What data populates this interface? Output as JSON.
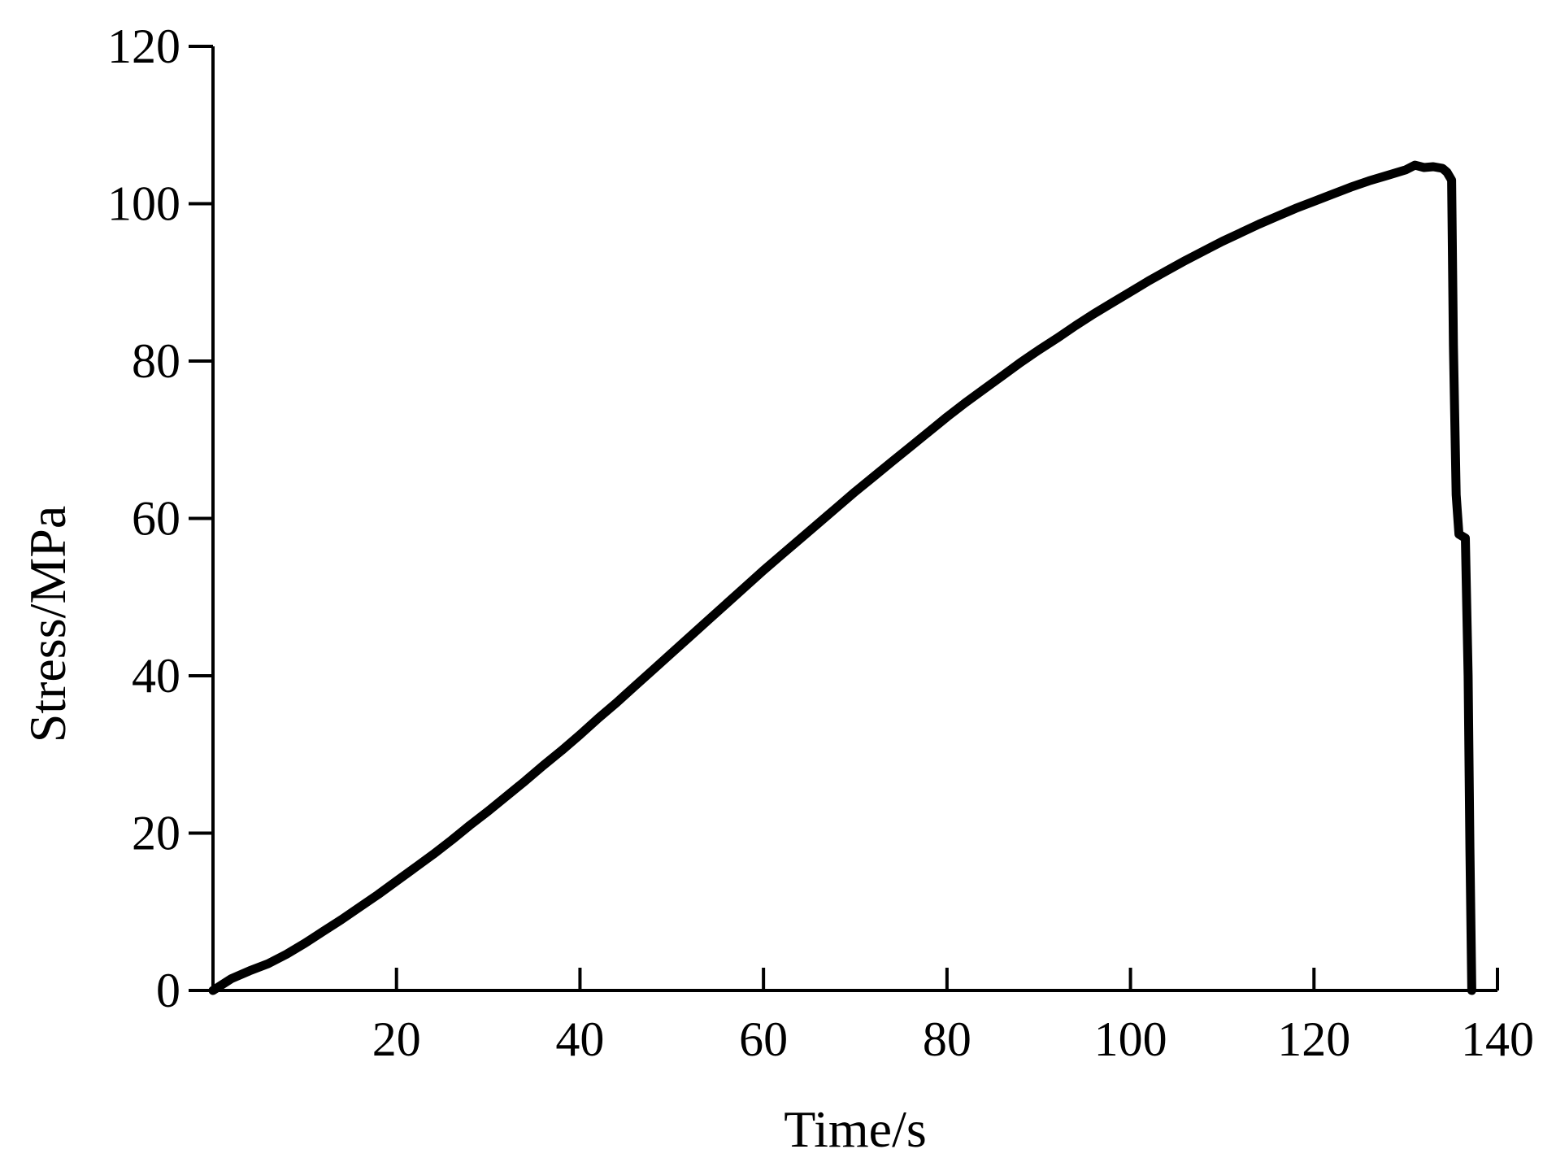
{
  "chart_data": {
    "type": "line",
    "title": "",
    "xlabel": "Time/s",
    "ylabel": "Stress/MPa",
    "xlim": [
      0,
      140
    ],
    "ylim": [
      0,
      120
    ],
    "xticks": [
      20,
      40,
      60,
      80,
      100,
      120,
      140
    ],
    "yticks": [
      0,
      20,
      40,
      60,
      80,
      100,
      120
    ],
    "grid": false,
    "legend": "none",
    "line_color": "#000000",
    "series": [
      {
        "x": [
          0,
          2,
          4,
          6,
          8,
          10,
          12,
          14,
          16,
          18,
          20,
          22,
          24,
          26,
          28,
          30,
          32,
          34,
          36,
          38,
          40,
          42,
          44,
          46,
          48,
          50,
          52,
          54,
          56,
          58,
          60,
          62,
          64,
          66,
          68,
          70,
          72,
          74,
          76,
          78,
          80,
          82,
          84,
          86,
          88,
          90,
          92,
          94,
          96,
          98,
          100,
          102,
          104,
          106,
          108,
          110,
          112,
          114,
          116,
          118,
          120,
          122,
          124,
          126,
          128,
          130,
          131,
          132,
          133,
          134,
          134.5,
          135,
          135.2,
          135.5,
          135.8,
          136.5,
          136.8,
          137,
          137.2
        ],
        "y": [
          0,
          1.5,
          2.5,
          3.4,
          4.6,
          6.0,
          7.5,
          9.0,
          10.6,
          12.2,
          13.9,
          15.6,
          17.3,
          19.1,
          21.0,
          22.8,
          24.7,
          26.6,
          28.6,
          30.5,
          32.5,
          34.6,
          36.6,
          38.7,
          40.8,
          42.9,
          45.0,
          47.1,
          49.2,
          51.3,
          53.4,
          55.4,
          57.4,
          59.4,
          61.4,
          63.4,
          65.3,
          67.2,
          69.1,
          71.0,
          72.9,
          74.7,
          76.4,
          78.1,
          79.8,
          81.4,
          82.9,
          84.5,
          86.0,
          87.4,
          88.8,
          90.2,
          91.5,
          92.8,
          94.0,
          95.2,
          96.3,
          97.4,
          98.4,
          99.4,
          100.3,
          101.2,
          102.1,
          102.9,
          103.6,
          104.3,
          104.9,
          104.6,
          104.7,
          104.5,
          104.0,
          103.0,
          82.0,
          63.0,
          58.0,
          57.5,
          40.0,
          18.0,
          0.0
        ]
      }
    ]
  }
}
